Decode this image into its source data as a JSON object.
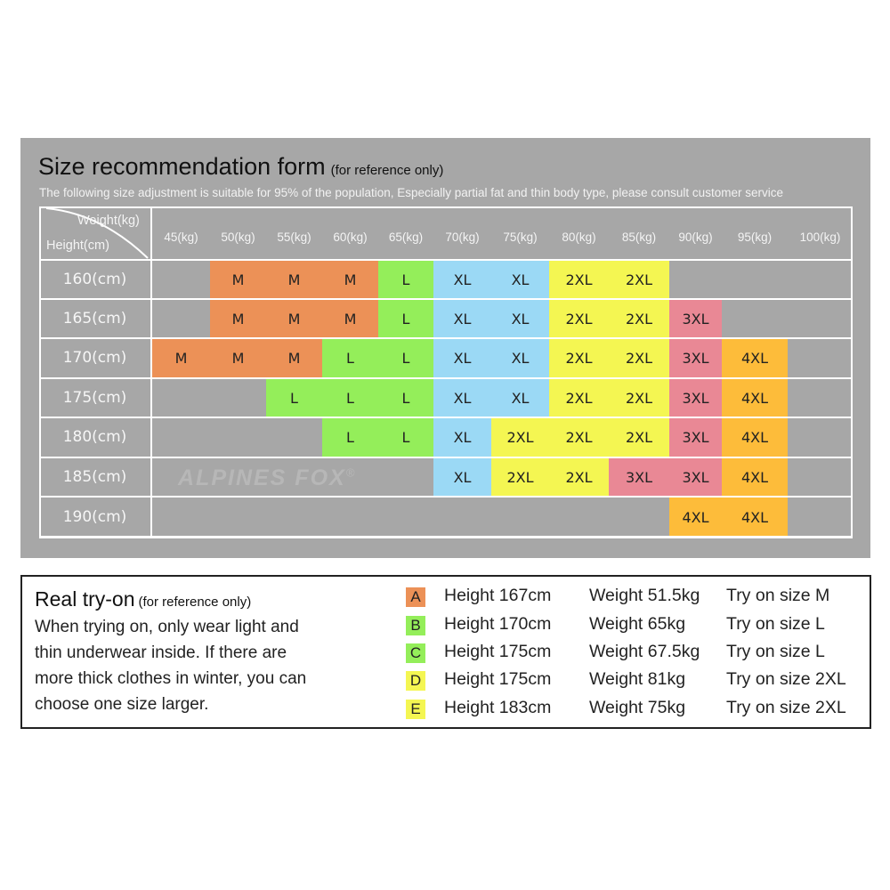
{
  "title": "Size recommendation form",
  "title_note": "(for reference only)",
  "subtitle": "The following size adjustment is suitable for 95% of the population, Especially partial fat and thin body type, please consult customer service",
  "header_weight": "Weight(kg)",
  "header_height": "Height(cm)",
  "weights": [
    "45(kg)",
    "50(kg)",
    "55(kg)",
    "60(kg)",
    "65(kg)",
    "70(kg)",
    "75(kg)",
    "80(kg)",
    "85(kg)",
    "90(kg)",
    "95(kg)",
    "100(kg)"
  ],
  "heights": [
    "160(cm)",
    "165(cm)",
    "170(cm)",
    "175(cm)",
    "180(cm)",
    "185(cm)",
    "190(cm)"
  ],
  "rows": [
    [
      "",
      "M",
      "M",
      "M",
      "L",
      "XL",
      "XL",
      "2XL",
      "2XL",
      "",
      "",
      ""
    ],
    [
      "",
      "M",
      "M",
      "M",
      "L",
      "XL",
      "XL",
      "2XL",
      "2XL",
      "3XL",
      "",
      ""
    ],
    [
      "M",
      "M",
      "M",
      "L",
      "L",
      "XL",
      "XL",
      "2XL",
      "2XL",
      "3XL",
      "4XL",
      ""
    ],
    [
      "",
      "",
      "L",
      "L",
      "L",
      "XL",
      "XL",
      "2XL",
      "2XL",
      "3XL",
      "4XL",
      ""
    ],
    [
      "",
      "",
      "",
      "L",
      "L",
      "XL",
      "2XL",
      "2XL",
      "2XL",
      "3XL",
      "4XL",
      ""
    ],
    [
      "",
      "",
      "",
      "",
      "",
      "XL",
      "2XL",
      "2XL",
      "3XL",
      "3XL",
      "4XL",
      ""
    ],
    [
      "",
      "",
      "",
      "",
      "",
      "",
      "",
      "",
      "",
      "4XL",
      "4XL",
      ""
    ]
  ],
  "size_colors": {
    "M": "#ec9157",
    "L": "#94ee5a",
    "XL": "#9bd9f5",
    "2XL": "#f4f652",
    "3XL": "#e98895",
    "4XL": "#fdbc3a"
  },
  "watermark": "ALPINES FOX",
  "watermark_mark": "®",
  "tryon": {
    "title": "Real try-on",
    "title_note": "(for reference only)",
    "text_lines": [
      "When trying on, only wear light and",
      "thin underwear inside. If there are",
      "more thick clothes in winter, you can",
      "choose one size larger."
    ],
    "entries": [
      {
        "letter": "A",
        "color": "#ec9157",
        "height": "Height 167cm",
        "weight": "Weight 51.5kg",
        "size": "Try on size M"
      },
      {
        "letter": "B",
        "color": "#94ee5a",
        "height": "Height 170cm",
        "weight": "Weight 65kg",
        "size": "Try on size L"
      },
      {
        "letter": "C",
        "color": "#94ee5a",
        "height": "Height 175cm",
        "weight": "Weight 67.5kg",
        "size": "Try on size L"
      },
      {
        "letter": "D",
        "color": "#f4f652",
        "height": "Height 175cm",
        "weight": "Weight 81kg",
        "size": "Try on size 2XL"
      },
      {
        "letter": "E",
        "color": "#f4f652",
        "height": "Height 183cm",
        "weight": "Weight 75kg",
        "size": "Try on size 2XL"
      }
    ]
  }
}
